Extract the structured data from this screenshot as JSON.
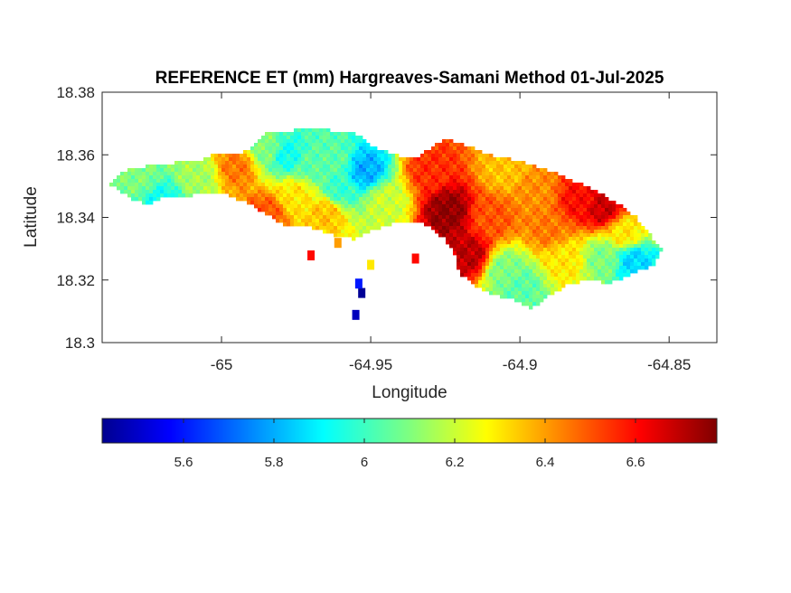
{
  "chart_data": {
    "type": "heatmap",
    "title": "REFERENCE ET (mm) Hargreaves-Samani Method  01-Jul-2025",
    "xlabel": "Longitude",
    "ylabel": "Latitude",
    "xlim": [
      -65.04,
      -64.834
    ],
    "ylim": [
      18.3,
      18.38
    ],
    "x_ticks": [
      -65,
      -64.95,
      -64.9,
      -64.85
    ],
    "x_tick_labels": [
      "-65",
      "-64.95",
      "-64.9",
      "-64.85"
    ],
    "y_ticks": [
      18.3,
      18.32,
      18.34,
      18.36,
      18.38
    ],
    "y_tick_labels": [
      "18.3",
      "18.32",
      "18.34",
      "18.36",
      "18.38"
    ],
    "colormap": "jet",
    "color_range": [
      5.42,
      6.78
    ],
    "colorbar_ticks": [
      5.6,
      5.8,
      6,
      6.2,
      6.4,
      6.6
    ],
    "colorbar_tick_labels": [
      "5.6",
      "5.8",
      "6",
      "6.2",
      "6.4",
      "6.6"
    ],
    "land_outline": [
      [
        -65.038,
        18.351
      ],
      [
        -65.032,
        18.355
      ],
      [
        -65.022,
        18.357
      ],
      [
        -65.008,
        18.358
      ],
      [
        -65.0,
        18.361
      ],
      [
        -64.995,
        18.36
      ],
      [
        -64.99,
        18.362
      ],
      [
        -64.985,
        18.367
      ],
      [
        -64.975,
        18.368
      ],
      [
        -64.965,
        18.368
      ],
      [
        -64.955,
        18.367
      ],
      [
        -64.948,
        18.362
      ],
      [
        -64.942,
        18.36
      ],
      [
        -64.935,
        18.359
      ],
      [
        -64.925,
        18.365
      ],
      [
        -64.918,
        18.363
      ],
      [
        -64.91,
        18.36
      ],
      [
        -64.9,
        18.358
      ],
      [
        -64.89,
        18.355
      ],
      [
        -64.878,
        18.35
      ],
      [
        -64.868,
        18.345
      ],
      [
        -64.861,
        18.34
      ],
      [
        -64.857,
        18.335
      ],
      [
        -64.852,
        18.33
      ],
      [
        -64.855,
        18.325
      ],
      [
        -64.862,
        18.322
      ],
      [
        -64.87,
        18.319
      ],
      [
        -64.878,
        18.32
      ],
      [
        -64.885,
        18.318
      ],
      [
        -64.89,
        18.315
      ],
      [
        -64.896,
        18.311
      ],
      [
        -64.9,
        18.313
      ],
      [
        -64.908,
        18.315
      ],
      [
        -64.915,
        18.318
      ],
      [
        -64.92,
        18.322
      ],
      [
        -64.922,
        18.328
      ],
      [
        -64.925,
        18.333
      ],
      [
        -64.932,
        18.338
      ],
      [
        -64.942,
        18.338
      ],
      [
        -64.95,
        18.336
      ],
      [
        -64.955,
        18.333
      ],
      [
        -64.962,
        18.334
      ],
      [
        -64.97,
        18.337
      ],
      [
        -64.978,
        18.337
      ],
      [
        -64.99,
        18.344
      ],
      [
        -65.0,
        18.348
      ],
      [
        -65.01,
        18.347
      ],
      [
        -65.02,
        18.346
      ],
      [
        -65.025,
        18.344
      ],
      [
        -65.03,
        18.346
      ]
    ],
    "hotspots": [
      {
        "lon": -65.02,
        "lat": 18.345,
        "value": 5.95
      },
      {
        "lon": -65.028,
        "lat": 18.353,
        "value": 6.1
      },
      {
        "lon": -65.008,
        "lat": 18.353,
        "value": 6.15
      },
      {
        "lon": -64.995,
        "lat": 18.356,
        "value": 6.45
      },
      {
        "lon": -64.985,
        "lat": 18.362,
        "value": 6.1
      },
      {
        "lon": -64.978,
        "lat": 18.36,
        "value": 5.95
      },
      {
        "lon": -64.97,
        "lat": 18.357,
        "value": 6.05
      },
      {
        "lon": -64.962,
        "lat": 18.358,
        "value": 6.05
      },
      {
        "lon": -64.952,
        "lat": 18.355,
        "value": 5.82
      },
      {
        "lon": -64.96,
        "lat": 18.349,
        "value": 6.0
      },
      {
        "lon": -64.975,
        "lat": 18.347,
        "value": 6.3
      },
      {
        "lon": -64.985,
        "lat": 18.341,
        "value": 6.5
      },
      {
        "lon": -64.965,
        "lat": 18.341,
        "value": 6.35
      },
      {
        "lon": -64.945,
        "lat": 18.345,
        "value": 6.2
      },
      {
        "lon": -64.93,
        "lat": 18.355,
        "value": 6.55
      },
      {
        "lon": -64.924,
        "lat": 18.342,
        "value": 6.76
      },
      {
        "lon": -64.917,
        "lat": 18.328,
        "value": 6.7
      },
      {
        "lon": -64.91,
        "lat": 18.34,
        "value": 6.5
      },
      {
        "lon": -64.905,
        "lat": 18.355,
        "value": 6.35
      },
      {
        "lon": -64.895,
        "lat": 18.348,
        "value": 6.42
      },
      {
        "lon": -64.89,
        "lat": 18.336,
        "value": 6.45
      },
      {
        "lon": -64.905,
        "lat": 18.323,
        "value": 6.1
      },
      {
        "lon": -64.9,
        "lat": 18.318,
        "value": 6.05
      },
      {
        "lon": -64.885,
        "lat": 18.327,
        "value": 6.3
      },
      {
        "lon": -64.88,
        "lat": 18.345,
        "value": 6.6
      },
      {
        "lon": -64.872,
        "lat": 18.343,
        "value": 6.68
      },
      {
        "lon": -64.865,
        "lat": 18.335,
        "value": 6.3
      },
      {
        "lon": -64.872,
        "lat": 18.327,
        "value": 6.1
      },
      {
        "lon": -64.862,
        "lat": 18.326,
        "value": 5.88
      }
    ],
    "islets": [
      {
        "lon": -64.953,
        "lat": 18.316,
        "value": 5.45
      },
      {
        "lon": -64.954,
        "lat": 18.319,
        "value": 5.62
      },
      {
        "lon": -64.955,
        "lat": 18.309,
        "value": 5.5
      },
      {
        "lon": -64.95,
        "lat": 18.325,
        "value": 6.3
      },
      {
        "lon": -64.961,
        "lat": 18.332,
        "value": 6.4
      },
      {
        "lon": -64.935,
        "lat": 18.327,
        "value": 6.6
      },
      {
        "lon": -64.97,
        "lat": 18.328,
        "value": 6.6
      }
    ]
  }
}
